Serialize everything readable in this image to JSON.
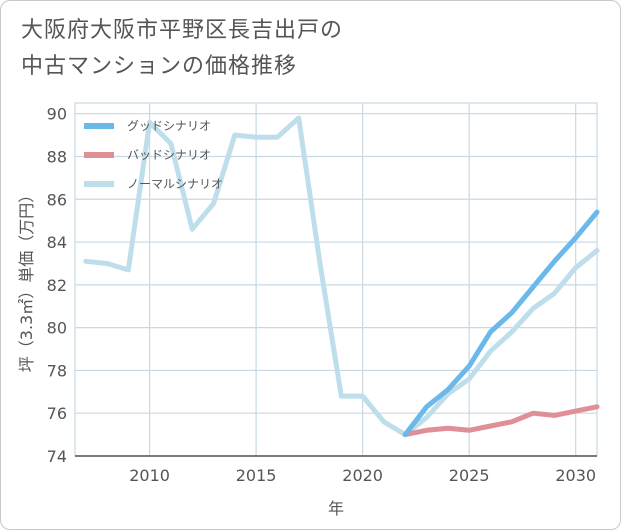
{
  "chart_data": {
    "type": "line",
    "title": "大阪府大阪市平野区長吉出戸の\n中古マンションの価格推移",
    "xlabel": "年",
    "ylabel": "坪（3.3㎡）単価（万円）",
    "xlim": [
      2006.5,
      2031
    ],
    "ylim": [
      74,
      90.5
    ],
    "x_ticks": [
      2010,
      2015,
      2020,
      2025,
      2030
    ],
    "y_ticks": [
      74,
      76,
      78,
      80,
      82,
      84,
      86,
      88,
      90
    ],
    "legend_position": "top-left",
    "series": [
      {
        "name": "グッドシナリオ",
        "color": "#6bb8ea",
        "x": [
          2022,
          2023,
          2024,
          2025,
          2026,
          2027,
          2028,
          2029,
          2030,
          2031
        ],
        "y": [
          75.0,
          76.3,
          77.1,
          78.2,
          79.8,
          80.7,
          81.9,
          83.1,
          84.2,
          85.4
        ]
      },
      {
        "name": "バッドシナリオ",
        "color": "#e08f96",
        "x": [
          2022,
          2023,
          2024,
          2025,
          2026,
          2027,
          2028,
          2029,
          2030,
          2031
        ],
        "y": [
          75.0,
          75.2,
          75.3,
          75.2,
          75.4,
          75.6,
          76.0,
          75.9,
          76.1,
          76.3
        ]
      },
      {
        "name": "ノーマルシナリオ",
        "color": "#bfdeec",
        "x": [
          2007,
          2008,
          2009,
          2010,
          2011,
          2012,
          2013,
          2014,
          2015,
          2016,
          2017,
          2018,
          2019,
          2020,
          2021,
          2022,
          2023,
          2024,
          2025,
          2026,
          2027,
          2028,
          2029,
          2030,
          2031
        ],
        "y": [
          83.1,
          83.0,
          82.7,
          89.6,
          88.6,
          84.6,
          85.8,
          89.0,
          88.9,
          88.9,
          89.8,
          83.0,
          76.8,
          76.8,
          75.6,
          75.0,
          75.8,
          76.9,
          77.6,
          78.9,
          79.8,
          80.9,
          81.6,
          82.8,
          83.6
        ]
      }
    ]
  }
}
